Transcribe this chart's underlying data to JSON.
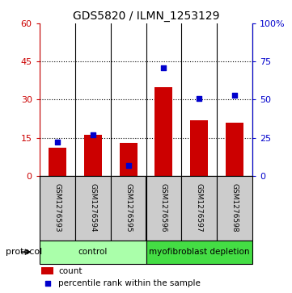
{
  "title": "GDS5820 / ILMN_1253129",
  "samples": [
    "GSM1276593",
    "GSM1276594",
    "GSM1276595",
    "GSM1276596",
    "GSM1276597",
    "GSM1276598"
  ],
  "counts": [
    11,
    16,
    13,
    35,
    22,
    21
  ],
  "percentile_ranks": [
    22,
    27,
    7,
    71,
    51,
    53
  ],
  "left_ylim": [
    0,
    60
  ],
  "right_ylim": [
    0,
    100
  ],
  "left_yticks": [
    0,
    15,
    30,
    45,
    60
  ],
  "right_yticks": [
    0,
    25,
    50,
    75,
    100
  ],
  "left_ycolor": "#cc0000",
  "right_ycolor": "#0000cc",
  "bar_color": "#cc0000",
  "marker_color": "#0000cc",
  "groups": [
    {
      "label": "control",
      "indices": [
        0,
        1,
        2
      ],
      "color": "#aaffaa"
    },
    {
      "label": "myofibroblast depletion",
      "indices": [
        3,
        4,
        5
      ],
      "color": "#44dd44"
    }
  ],
  "protocol_label": "protocol",
  "label_count": "count",
  "label_percentile": "percentile rank within the sample",
  "bg_sample_color": "#cccccc",
  "title_fontsize": 10
}
